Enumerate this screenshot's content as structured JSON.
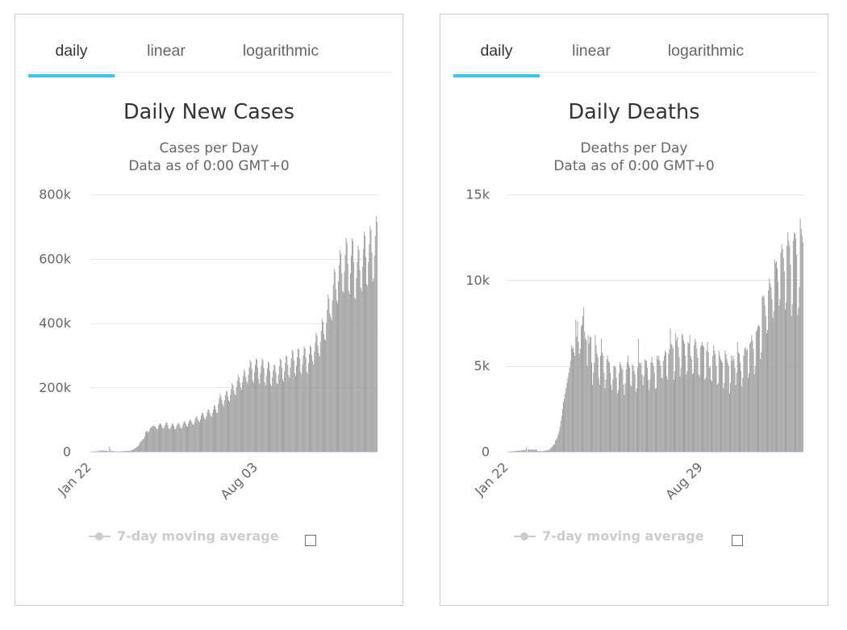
{
  "colors": {
    "accent": "#35c8ef",
    "bar": "#999999",
    "gridline": "#e6e6e6",
    "axis_line": "#ccd6eb",
    "legend_disabled": "#cccccc",
    "panel_border": "#cccccc"
  },
  "panels": [
    {
      "tabs": [
        {
          "label": "daily",
          "active": true
        },
        {
          "label": "linear",
          "active": false
        },
        {
          "label": "logarithmic",
          "active": false
        }
      ],
      "legend_checkbox_checked": false
    },
    {
      "tabs": [
        {
          "label": "daily",
          "active": true
        },
        {
          "label": "linear",
          "active": false
        },
        {
          "label": "logarithmic",
          "active": false
        }
      ],
      "legend_checkbox_checked": false
    }
  ],
  "chart_data": [
    {
      "type": "bar",
      "title": "Daily New Cases",
      "subtitle": [
        "Cases per Day",
        "Data as of 0:00 GMT+0"
      ],
      "xlabel": "",
      "ylabel": "",
      "x_tick_labels": [
        "Jan 22",
        "Aug 03"
      ],
      "x_tick_days": [
        0,
        194
      ],
      "y_ticks": [
        0,
        200000,
        400000,
        600000,
        800000
      ],
      "y_tick_labels": [
        "0",
        "200k",
        "400k",
        "600k",
        "800k"
      ],
      "ylim": [
        0,
        800000
      ],
      "grid": true,
      "legend": {
        "placement": "bottom-center",
        "entries": [
          {
            "label": "7-day moving average",
            "visible": false
          }
        ]
      },
      "values": [
        600,
        100,
        300,
        500,
        700,
        800,
        2700,
        600,
        2100,
        1700,
        2100,
        4700,
        3100,
        4000,
        3700,
        3200,
        3600,
        2700,
        3000,
        2600,
        2000,
        400,
        15200,
        6500,
        2100,
        2200,
        2000,
        1900,
        500,
        600,
        1000,
        1000,
        400,
        600,
        900,
        1000,
        1400,
        1800,
        1900,
        1700,
        1800,
        2300,
        2400,
        2800,
        2200,
        2300,
        3000,
        3800,
        4000,
        6000,
        7000,
        9000,
        11000,
        13000,
        15000,
        17000,
        20000,
        26000,
        31000,
        32000,
        36000,
        40000,
        41000,
        48000,
        60000,
        64000,
        64000,
        60000,
        63000,
        70000,
        74000,
        77000,
        80000,
        80000,
        82000,
        78000,
        75000,
        72000,
        70000,
        79000,
        85000,
        88000,
        86000,
        80000,
        74000,
        71000,
        78000,
        84000,
        92000,
        90000,
        82000,
        72000,
        70000,
        75000,
        80000,
        88000,
        86000,
        80000,
        70000,
        71000,
        78000,
        84000,
        90000,
        88000,
        82000,
        74000,
        72000,
        80000,
        88000,
        95000,
        92000,
        86000,
        80000,
        78000,
        88000,
        95000,
        100000,
        98000,
        92000,
        86000,
        84000,
        92000,
        102000,
        110000,
        108000,
        100000,
        96000,
        92000,
        100000,
        112000,
        122000,
        120000,
        112000,
        104000,
        100000,
        110000,
        122000,
        132000,
        130000,
        120000,
        112000,
        108000,
        120000,
        132000,
        145000,
        142000,
        130000,
        122000,
        120000,
        150000,
        165000,
        180000,
        172000,
        160000,
        148000,
        140000,
        160000,
        176000,
        190000,
        186000,
        172000,
        160000,
        156000,
        176000,
        195000,
        213000,
        208000,
        192000,
        180000,
        176000,
        200000,
        220000,
        240000,
        232000,
        215000,
        200000,
        192000,
        215000,
        235000,
        255000,
        250000,
        232000,
        220000,
        212000,
        240000,
        262000,
        285000,
        280000,
        258000,
        222000,
        214000,
        246000,
        270000,
        290000,
        286000,
        262000,
        226000,
        212000,
        244000,
        268000,
        290000,
        284000,
        260000,
        216000,
        206000,
        236000,
        260000,
        280000,
        276000,
        250000,
        210000,
        204000,
        232000,
        254000,
        272000,
        268000,
        246000,
        214000,
        210000,
        240000,
        266000,
        290000,
        286000,
        262000,
        226000,
        218000,
        250000,
        276000,
        300000,
        296000,
        270000,
        238000,
        230000,
        262000,
        290000,
        318000,
        312000,
        284000,
        244000,
        236000,
        268000,
        294000,
        322000,
        318000,
        290000,
        248000,
        240000,
        272000,
        300000,
        328000,
        322000,
        292000,
        250000,
        242000,
        276000,
        304000,
        330000,
        326000,
        300000,
        282000,
        270000,
        310000,
        340000,
        370000,
        362000,
        330000,
        306000,
        296000,
        342000,
        376000,
        413000,
        404000,
        366000,
        350000,
        346000,
        400000,
        442000,
        488000,
        476000,
        430000,
        420000,
        410000,
        470000,
        520000,
        570000,
        560000,
        505000,
        470000,
        462000,
        530000,
        580000,
        627000,
        615000,
        555000,
        500000,
        495000,
        560000,
        612000,
        664000,
        650000,
        585000,
        500000,
        490000,
        555000,
        610000,
        664000,
        655000,
        590000,
        480000,
        475000,
        540000,
        590000,
        640000,
        628000,
        565000,
        510000,
        500000,
        575000,
        630000,
        684000,
        672000,
        605000,
        522000,
        515000,
        590000,
        645000,
        702000,
        690000,
        620000,
        530000,
        540000,
        610000,
        670000,
        732000,
        715000
      ]
    },
    {
      "type": "bar",
      "title": "Daily Deaths",
      "subtitle": [
        "Deaths per Day",
        "Data as of 0:00 GMT+0"
      ],
      "xlabel": "",
      "ylabel": "",
      "x_tick_labels": [
        "Jan 22",
        "Aug 29"
      ],
      "x_tick_days": [
        0,
        220
      ],
      "y_ticks": [
        0,
        5000,
        10000,
        15000
      ],
      "y_tick_labels": [
        "0",
        "5k",
        "10k",
        "15k"
      ],
      "ylim": [
        0,
        15000
      ],
      "grid": true,
      "legend": {
        "placement": "bottom-center",
        "entries": [
          {
            "label": "7-day moving average",
            "visible": false
          }
        ]
      },
      "values": [
        17,
        1,
        8,
        16,
        14,
        26,
        26,
        38,
        43,
        46,
        45,
        57,
        64,
        66,
        73,
        73,
        86,
        89,
        97,
        108,
        97,
        254,
        13,
        143,
        142,
        106,
        98,
        139,
        115,
        118,
        109,
        97,
        150,
        71,
        52,
        29,
        44,
        47,
        35,
        42,
        31,
        38,
        57,
        64,
        81,
        89,
        103,
        103,
        166,
        253,
        273,
        347,
        426,
        422,
        638,
        722,
        820,
        1000,
        1200,
        1450,
        1800,
        2100,
        2500,
        2900,
        3100,
        3400,
        3700,
        4000,
        4300,
        4600,
        4900,
        5300,
        6200,
        6000,
        6100,
        5800,
        5600,
        7700,
        6700,
        7600,
        6400,
        5700,
        6000,
        7300,
        7400,
        7900,
        8400,
        7000,
        6600,
        6500,
        5000,
        6800,
        6300,
        6700,
        6700,
        5200,
        3900,
        4600,
        5200,
        6800,
        6200,
        5700,
        5500,
        4300,
        3900,
        5600,
        6600,
        5800,
        5600,
        4600,
        3700,
        4200,
        5400,
        5600,
        5300,
        5200,
        4600,
        3900,
        3600,
        4200,
        5000,
        5000,
        4900,
        4300,
        3400,
        3600,
        4600,
        5200,
        5100,
        4900,
        4800,
        3900,
        3300,
        4000,
        4800,
        5200,
        5600,
        5100,
        4900,
        3900,
        3800,
        5100,
        5000,
        4700,
        4500,
        3500,
        3700,
        4900,
        6600,
        5200,
        5100,
        5200,
        4500,
        3900,
        4400,
        5400,
        5300,
        5300,
        4900,
        4200,
        3600,
        4200,
        5200,
        5500,
        5200,
        5000,
        4600,
        3700,
        3700,
        5600,
        5400,
        5600,
        5300,
        5000,
        4300,
        4300,
        5300,
        5600,
        5900,
        5800,
        4400,
        4200,
        5700,
        6000,
        7200,
        6300,
        6200,
        6000,
        4200,
        4700,
        6900,
        6500,
        6700,
        6100,
        5500,
        4400,
        4900,
        6900,
        6800,
        6500,
        6300,
        5600,
        4500,
        4700,
        6400,
        6300,
        6800,
        5600,
        5400,
        4500,
        4600,
        6200,
        6600,
        6400,
        6000,
        5500,
        4500,
        4400,
        6100,
        6200,
        6400,
        6200,
        6100,
        4200,
        4300,
        5900,
        6400,
        5800,
        4900,
        5000,
        4200,
        4100,
        5600,
        6200,
        5900,
        5700,
        5000,
        3900,
        4000,
        5900,
        5600,
        5400,
        5300,
        5200,
        3700,
        4000,
        5900,
        5700,
        5400,
        5200,
        5000,
        3400,
        4000,
        5600,
        5300,
        5600,
        5400,
        4900,
        3900,
        4600,
        6400,
        5800,
        5700,
        5200,
        4700,
        3800,
        4300,
        5600,
        6000,
        6100,
        5900,
        6000,
        4300,
        4600,
        6300,
        6400,
        6800,
        6500,
        6000,
        4500,
        5000,
        7000,
        7100,
        7300,
        7400,
        7300,
        5400,
        5800,
        9100,
        9000,
        9100,
        8500,
        7900,
        6900,
        7100,
        9400,
        10100,
        9800,
        9600,
        8900,
        7800,
        8200,
        11200,
        11000,
        11100,
        10700,
        9900,
        8500,
        8900,
        11600,
        12100,
        11800,
        11300,
        10500,
        8300,
        8700,
        12000,
        12800,
        12300,
        12000,
        10900,
        7900,
        8600,
        12300,
        12800,
        12700,
        12400,
        11500,
        8000,
        8400,
        9600,
        13600,
        13000,
        12600,
        12200
      ]
    }
  ]
}
